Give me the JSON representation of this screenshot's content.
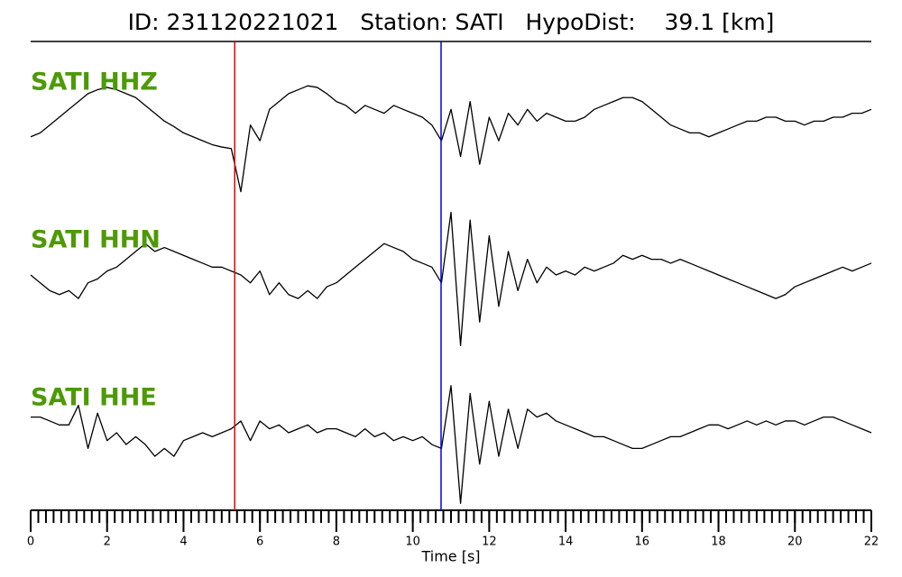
{
  "chart_data": {
    "type": "line",
    "title": "ID: 231120221021   Station: SATI   HypoDist:    39.1 [km]",
    "xlabel": "Time [s]",
    "xlim": [
      0,
      22
    ],
    "xticks": [
      0,
      2,
      4,
      6,
      8,
      10,
      12,
      14,
      16,
      18,
      20,
      22
    ],
    "xminor_step": 0.2,
    "ylim": [
      -1,
      1
    ],
    "label_color": "#4d9a06",
    "vlines": [
      {
        "x": 5.34,
        "color": "#e00000"
      },
      {
        "x": 10.74,
        "color": "#0000e0"
      }
    ],
    "x": [
      0,
      0.25,
      0.5,
      0.75,
      1,
      1.25,
      1.5,
      1.75,
      2,
      2.25,
      2.5,
      2.75,
      3,
      3.25,
      3.5,
      3.75,
      4,
      4.25,
      4.5,
      4.75,
      5,
      5.25,
      5.5,
      5.75,
      6,
      6.25,
      6.5,
      6.75,
      7,
      7.25,
      7.5,
      7.75,
      8,
      8.25,
      8.5,
      8.75,
      9,
      9.25,
      9.5,
      9.75,
      10,
      10.25,
      10.5,
      10.75,
      11,
      11.25,
      11.5,
      11.75,
      12,
      12.25,
      12.5,
      12.75,
      13,
      13.25,
      13.5,
      13.75,
      14,
      14.25,
      14.5,
      14.75,
      15,
      15.25,
      15.5,
      15.75,
      16,
      16.25,
      16.5,
      16.75,
      17,
      17.25,
      17.5,
      17.75,
      18,
      18.25,
      18.5,
      18.75,
      19,
      19.25,
      19.5,
      19.75,
      20,
      20.25,
      20.5,
      20.75,
      21,
      21.25,
      21.5,
      21.75,
      22
    ],
    "series": [
      {
        "name": "SATI HHZ",
        "color": "#000000",
        "values": [
          -0.25,
          -0.2,
          -0.1,
          0.0,
          0.1,
          0.2,
          0.3,
          0.35,
          0.38,
          0.35,
          0.3,
          0.25,
          0.15,
          0.05,
          -0.05,
          -0.12,
          -0.2,
          -0.25,
          -0.3,
          -0.35,
          -0.38,
          -0.4,
          -0.95,
          -0.1,
          -0.3,
          0.1,
          0.2,
          0.3,
          0.35,
          0.4,
          0.38,
          0.3,
          0.2,
          0.15,
          0.05,
          0.15,
          0.1,
          0.05,
          0.15,
          0.1,
          0.05,
          0.0,
          -0.1,
          -0.3,
          0.1,
          -0.5,
          0.2,
          -0.6,
          0.0,
          -0.3,
          0.05,
          -0.1,
          0.1,
          -0.05,
          0.05,
          0.0,
          -0.05,
          -0.05,
          0.0,
          0.1,
          0.15,
          0.2,
          0.25,
          0.25,
          0.2,
          0.1,
          0.0,
          -0.1,
          -0.15,
          -0.2,
          -0.2,
          -0.25,
          -0.2,
          -0.15,
          -0.1,
          -0.05,
          -0.05,
          0.0,
          0.0,
          -0.05,
          -0.05,
          -0.1,
          -0.05,
          -0.05,
          0.0,
          0.0,
          0.05,
          0.05,
          0.1
        ]
      },
      {
        "name": "SATI HHN",
        "color": "#000000",
        "values": [
          0.0,
          -0.1,
          -0.2,
          -0.25,
          -0.2,
          -0.3,
          -0.1,
          -0.05,
          0.05,
          0.1,
          0.2,
          0.3,
          0.4,
          0.3,
          0.35,
          0.3,
          0.25,
          0.2,
          0.15,
          0.1,
          0.1,
          0.05,
          0.0,
          -0.1,
          0.05,
          -0.25,
          -0.1,
          -0.25,
          -0.3,
          -0.2,
          -0.3,
          -0.15,
          -0.1,
          0.0,
          0.1,
          0.2,
          0.3,
          0.4,
          0.35,
          0.3,
          0.2,
          0.15,
          0.1,
          -0.1,
          0.8,
          -0.9,
          0.7,
          -0.6,
          0.5,
          -0.4,
          0.3,
          -0.2,
          0.2,
          -0.1,
          0.1,
          0.0,
          0.05,
          0.0,
          0.1,
          0.05,
          0.1,
          0.15,
          0.25,
          0.2,
          0.25,
          0.2,
          0.2,
          0.15,
          0.2,
          0.15,
          0.1,
          0.05,
          0.0,
          -0.05,
          -0.1,
          -0.15,
          -0.2,
          -0.25,
          -0.3,
          -0.25,
          -0.15,
          -0.1,
          -0.05,
          0.0,
          0.05,
          0.1,
          0.05,
          0.1,
          0.15
        ]
      },
      {
        "name": "SATI HHE",
        "color": "#000000",
        "values": [
          0.2,
          0.2,
          0.15,
          0.1,
          0.1,
          0.35,
          -0.2,
          0.25,
          -0.1,
          0.0,
          -0.15,
          -0.05,
          -0.15,
          -0.3,
          -0.2,
          -0.3,
          -0.1,
          -0.05,
          0.0,
          -0.05,
          0.0,
          0.05,
          0.15,
          -0.1,
          0.15,
          0.05,
          0.1,
          0.0,
          0.05,
          0.1,
          0.0,
          0.05,
          0.05,
          0.0,
          -0.05,
          0.05,
          -0.05,
          0.0,
          -0.1,
          -0.05,
          -0.1,
          -0.05,
          -0.15,
          -0.2,
          0.6,
          -0.9,
          0.5,
          -0.4,
          0.4,
          -0.3,
          0.3,
          -0.2,
          0.3,
          0.2,
          0.25,
          0.15,
          0.1,
          0.05,
          0.0,
          -0.05,
          -0.05,
          -0.1,
          -0.15,
          -0.2,
          -0.2,
          -0.15,
          -0.1,
          -0.05,
          -0.05,
          0.0,
          0.05,
          0.1,
          0.1,
          0.05,
          0.1,
          0.15,
          0.1,
          0.15,
          0.1,
          0.15,
          0.15,
          0.1,
          0.15,
          0.2,
          0.2,
          0.15,
          0.1,
          0.05,
          0.0
        ]
      }
    ]
  }
}
